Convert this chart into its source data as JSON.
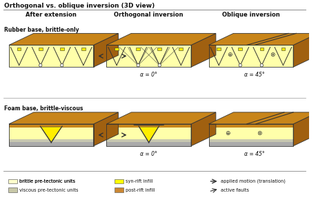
{
  "title": "Orthogonal vs. oblique inversion (3D view)",
  "col_headers": [
    "After extension",
    "Orthogonal inversion",
    "Oblique inversion"
  ],
  "row_headers": [
    "Rubber base, brittle-only",
    "Foam base, brittle-viscous"
  ],
  "bg_color": "#ffffff",
  "orange_top": "#c8851a",
  "orange_side": "#a06010",
  "yellow_face": "#ffffaa",
  "bright_yellow": "#ffee00",
  "gray_face": "#c8c8b0",
  "gray_layer": "#aaaaaa",
  "dark": "#333333",
  "black": "#111111",
  "legend_brittle": "#ffffcc",
  "legend_viscous": "#c8c8a8",
  "legend_syn": "#ffff00",
  "legend_post": "#cc8833"
}
